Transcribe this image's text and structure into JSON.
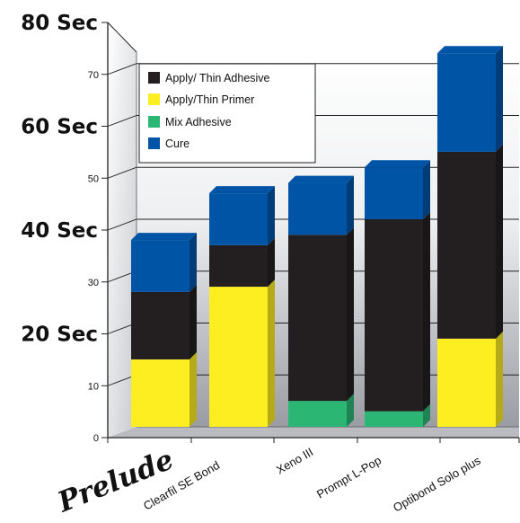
{
  "chart_data": {
    "type": "bar",
    "stacked": true,
    "three_d": true,
    "title": "",
    "xlabel": "",
    "ylabel": "",
    "ylim": [
      0,
      80
    ],
    "grid": true,
    "legend_position": "top-left",
    "y_big_ticks": [
      {
        "value": 20,
        "label": "20 Sec"
      },
      {
        "value": 40,
        "label": "40 Sec"
      },
      {
        "value": 60,
        "label": "60 Sec"
      },
      {
        "value": 80,
        "label": "80 Sec"
      }
    ],
    "y_small_ticks": [
      {
        "value": 0,
        "label": "0"
      },
      {
        "value": 10,
        "label": "10"
      },
      {
        "value": 30,
        "label": "30"
      },
      {
        "value": 50,
        "label": "50"
      },
      {
        "value": 70,
        "label": "70"
      }
    ],
    "categories": [
      "Prelude",
      "Clearfil SE Bond",
      "Xeno III",
      "Prompt L-Pop",
      "Optibond Solo plus"
    ],
    "series": [
      {
        "name": "Mix Adhesive",
        "color": "#2bb673",
        "values": [
          0,
          0,
          5,
          3,
          0
        ]
      },
      {
        "name": "Apply/Thin Primer",
        "color": "#fcee21",
        "values": [
          13,
          27,
          0,
          0,
          17
        ]
      },
      {
        "name": "Apply/ Thin Adhesive",
        "color": "#231f20",
        "values": [
          13,
          8,
          32,
          37,
          36
        ]
      },
      {
        "name": "Cure",
        "color": "#0054a6",
        "values": [
          10,
          10,
          10,
          10,
          19
        ]
      }
    ],
    "legend_order": [
      "Apply/ Thin Adhesive",
      "Apply/Thin Primer",
      "Mix Adhesive",
      "Cure"
    ]
  }
}
